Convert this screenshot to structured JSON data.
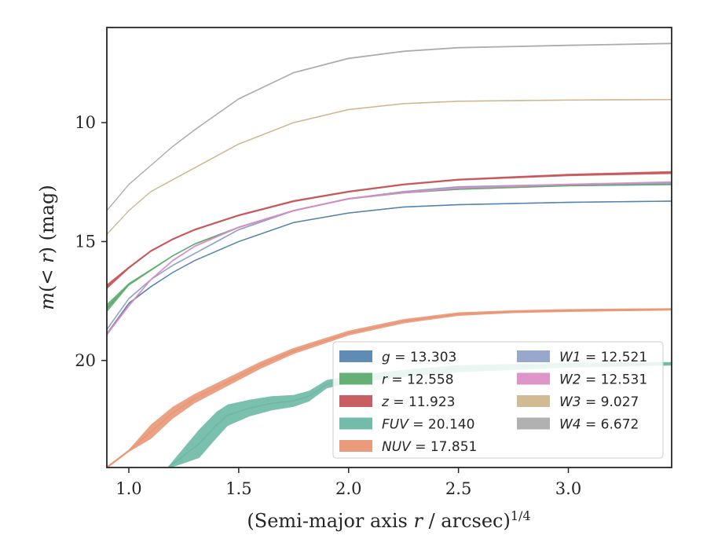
{
  "chart_data": {
    "type": "line",
    "xlabel": "(Semi-major axis r / arcsec)^1/4",
    "ylabel": "m(< r) (mag)",
    "xlim": [
      0.9,
      3.47
    ],
    "ylim": [
      24.5,
      6.0
    ],
    "y_inverted": true,
    "xticks": [
      "1.0",
      "1.5",
      "2.0",
      "2.5",
      "3.0"
    ],
    "yticks": [
      "10",
      "15",
      "20"
    ],
    "legend_position": "lower-right",
    "legend_columns": 2,
    "grid": false,
    "series": [
      {
        "name": "g = 13.303",
        "band": "g",
        "value": "13.303",
        "color": "#4c7fad",
        "x": [
          0.9,
          1.0,
          1.1,
          1.2,
          1.3,
          1.5,
          1.75,
          2.0,
          2.25,
          2.5,
          3.0,
          3.47
        ],
        "y": [
          18.9,
          17.6,
          16.9,
          16.3,
          15.8,
          15.0,
          14.2,
          13.8,
          13.55,
          13.45,
          13.35,
          13.3
        ],
        "band_width": [
          0.15,
          0.08,
          0.06,
          0.05,
          0.05,
          0.05,
          0.05,
          0.05,
          0.05,
          0.05,
          0.05,
          0.05
        ]
      },
      {
        "name": "r = 12.558",
        "band": "r",
        "value": "12.558",
        "color": "#55a868",
        "x": [
          0.9,
          1.0,
          1.1,
          1.2,
          1.3,
          1.5,
          1.75,
          2.0,
          2.25,
          2.5,
          3.0,
          3.47
        ],
        "y": [
          17.8,
          16.8,
          16.2,
          15.6,
          15.1,
          14.4,
          13.7,
          13.2,
          12.95,
          12.8,
          12.65,
          12.6
        ],
        "band_width": [
          0.35,
          0.12,
          0.08,
          0.06,
          0.06,
          0.06,
          0.06,
          0.06,
          0.06,
          0.06,
          0.06,
          0.06
        ]
      },
      {
        "name": "z = 11.923",
        "band": "z",
        "value": "11.923",
        "color": "#c44e52",
        "x": [
          0.9,
          1.0,
          1.1,
          1.2,
          1.3,
          1.5,
          1.75,
          2.0,
          2.25,
          2.5,
          3.0,
          3.47
        ],
        "y": [
          16.9,
          16.1,
          15.4,
          14.9,
          14.5,
          13.9,
          13.3,
          12.9,
          12.6,
          12.4,
          12.2,
          12.1
        ],
        "band_width": [
          0.2,
          0.1,
          0.08,
          0.08,
          0.08,
          0.08,
          0.08,
          0.08,
          0.08,
          0.08,
          0.1,
          0.12
        ]
      },
      {
        "name": "FUV = 20.140",
        "band": "FUV",
        "value": "20.140",
        "color": "#64b5a0",
        "x": [
          1.18,
          1.32,
          1.4,
          1.45,
          1.55,
          1.65,
          1.75,
          1.82,
          1.9,
          2.0,
          2.1,
          2.2,
          2.3,
          2.5,
          3.0,
          3.47
        ],
        "y": [
          24.5,
          23.5,
          22.7,
          22.3,
          22.0,
          21.8,
          21.7,
          21.5,
          21.0,
          20.8,
          20.7,
          20.6,
          20.5,
          20.35,
          20.2,
          20.14
        ],
        "band_width": [
          0.1,
          1.2,
          1.1,
          0.9,
          0.7,
          0.6,
          0.5,
          0.45,
          0.35,
          0.3,
          0.3,
          0.3,
          0.3,
          0.3,
          0.2,
          0.15
        ]
      },
      {
        "name": "NUV = 17.851",
        "band": "NUV",
        "value": "17.851",
        "color": "#e8906e",
        "x": [
          0.9,
          1.0,
          1.1,
          1.2,
          1.3,
          1.45,
          1.6,
          1.75,
          2.0,
          2.25,
          2.5,
          2.75,
          3.0,
          3.47
        ],
        "y": [
          24.5,
          23.8,
          23.0,
          22.2,
          21.6,
          20.9,
          20.2,
          19.6,
          18.85,
          18.35,
          18.05,
          17.95,
          17.9,
          17.85
        ],
        "band_width": [
          0.1,
          0.1,
          0.6,
          0.5,
          0.4,
          0.35,
          0.3,
          0.25,
          0.2,
          0.18,
          0.15,
          0.12,
          0.12,
          0.1
        ]
      },
      {
        "name": "W1 = 12.521",
        "band": "W1",
        "value": "12.521",
        "color": "#8c9fc7",
        "x": [
          0.9,
          1.0,
          1.1,
          1.2,
          1.3,
          1.5,
          1.75,
          2.0,
          2.25,
          2.5,
          3.0,
          3.47
        ],
        "y": [
          18.7,
          17.4,
          16.6,
          16.0,
          15.5,
          14.5,
          13.7,
          13.2,
          12.9,
          12.7,
          12.6,
          12.55
        ],
        "band_width": [
          0.1,
          0.08,
          0.06,
          0.06,
          0.06,
          0.06,
          0.06,
          0.06,
          0.06,
          0.06,
          0.06,
          0.06
        ]
      },
      {
        "name": "W2 = 12.531",
        "band": "W2",
        "value": "12.531",
        "color": "#da8bc3",
        "x": [
          0.9,
          1.0,
          1.1,
          1.2,
          1.3,
          1.5,
          1.75,
          2.0,
          2.25,
          2.5,
          3.0,
          3.47
        ],
        "y": [
          18.9,
          17.7,
          16.6,
          15.8,
          15.2,
          14.4,
          13.7,
          13.2,
          12.95,
          12.75,
          12.6,
          12.5
        ],
        "band_width": [
          0.12,
          0.1,
          0.08,
          0.07,
          0.07,
          0.07,
          0.07,
          0.07,
          0.07,
          0.07,
          0.07,
          0.07
        ]
      },
      {
        "name": "W3 = 9.027",
        "band": "W3",
        "value": "9.027",
        "color": "#ccb48a",
        "x": [
          0.9,
          1.0,
          1.1,
          1.2,
          1.3,
          1.5,
          1.75,
          2.0,
          2.25,
          2.5,
          3.0,
          3.47
        ],
        "y": [
          14.7,
          13.7,
          12.9,
          12.4,
          11.9,
          10.9,
          10.0,
          9.45,
          9.2,
          9.1,
          9.05,
          9.03
        ],
        "band_width": [
          0.06,
          0.05,
          0.05,
          0.05,
          0.05,
          0.05,
          0.05,
          0.05,
          0.05,
          0.05,
          0.05,
          0.05
        ]
      },
      {
        "name": "W4 = 6.672",
        "band": "W4",
        "value": "6.672",
        "color": "#a8a8a8",
        "x": [
          0.9,
          1.0,
          1.1,
          1.2,
          1.3,
          1.5,
          1.75,
          2.0,
          2.25,
          2.5,
          3.0,
          3.47
        ],
        "y": [
          13.7,
          12.6,
          11.8,
          11.0,
          10.3,
          9.0,
          7.9,
          7.3,
          7.0,
          6.85,
          6.75,
          6.67
        ],
        "band_width": [
          0.05,
          0.05,
          0.05,
          0.05,
          0.06,
          0.06,
          0.06,
          0.06,
          0.06,
          0.06,
          0.06,
          0.06
        ]
      }
    ]
  }
}
